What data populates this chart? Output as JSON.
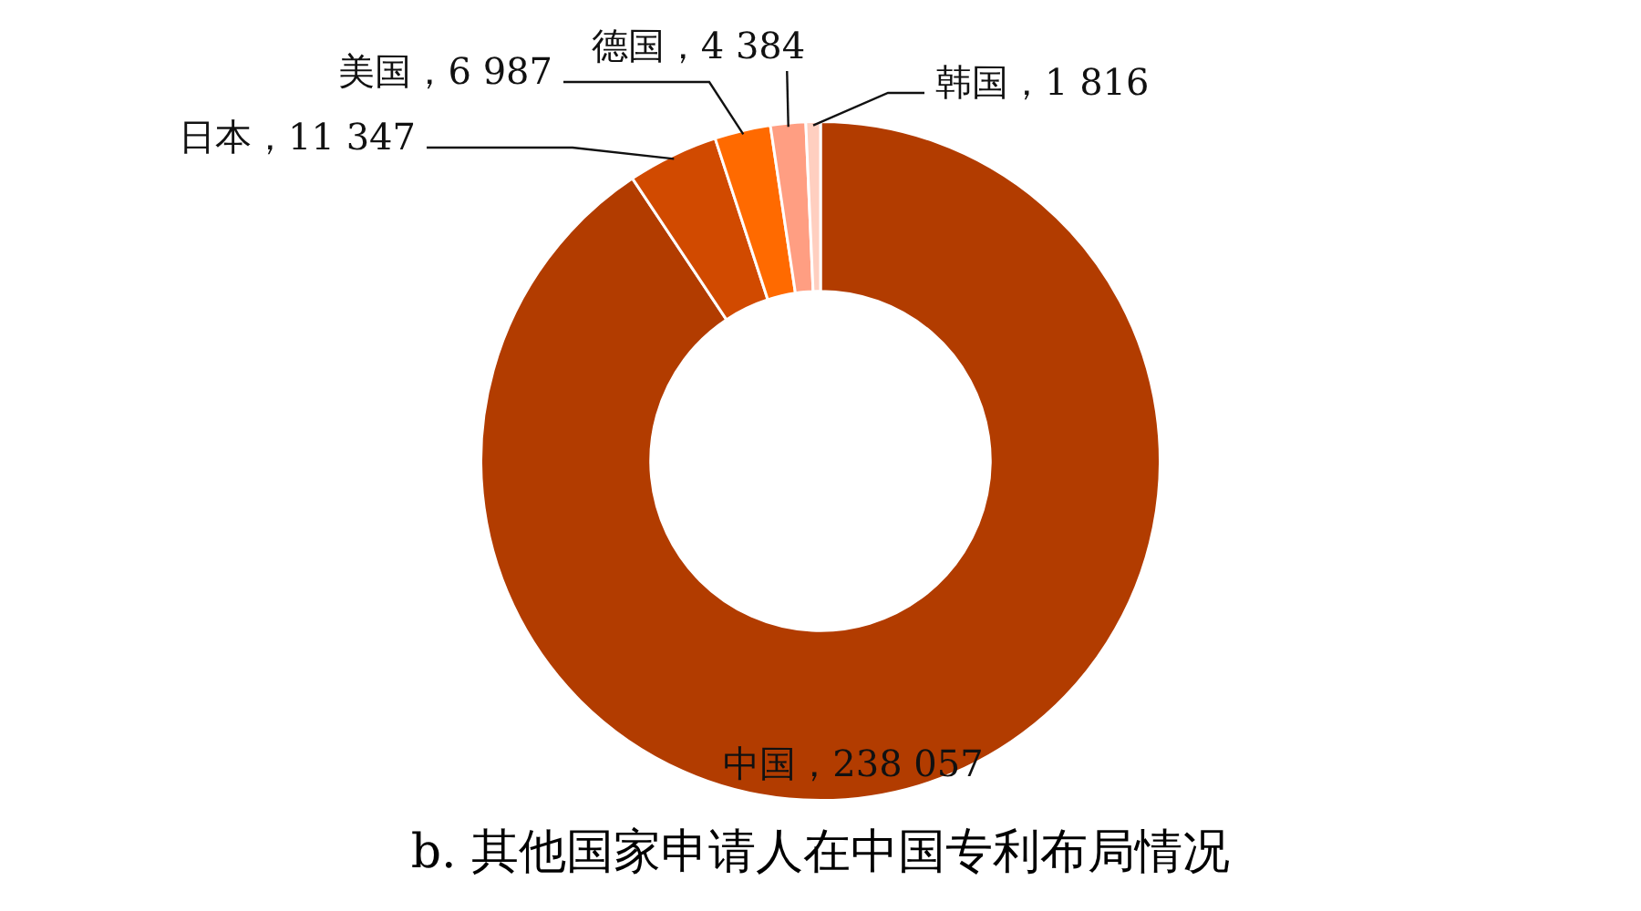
{
  "chart_data": {
    "type": "donut",
    "title": "b. 其他国家申请人在中国专利布局情况",
    "categories": [
      "中国",
      "日本",
      "美国",
      "德国",
      "韩国"
    ],
    "values": [
      238057,
      11347,
      6987,
      4384,
      1816
    ],
    "colors": [
      "#b23c00",
      "#d14a00",
      "#ff6a00",
      "#ff9e82",
      "#ffcfc0"
    ],
    "value_labels": [
      "238 057",
      "11 347",
      "6 987",
      "4 384",
      "1 816"
    ]
  }
}
